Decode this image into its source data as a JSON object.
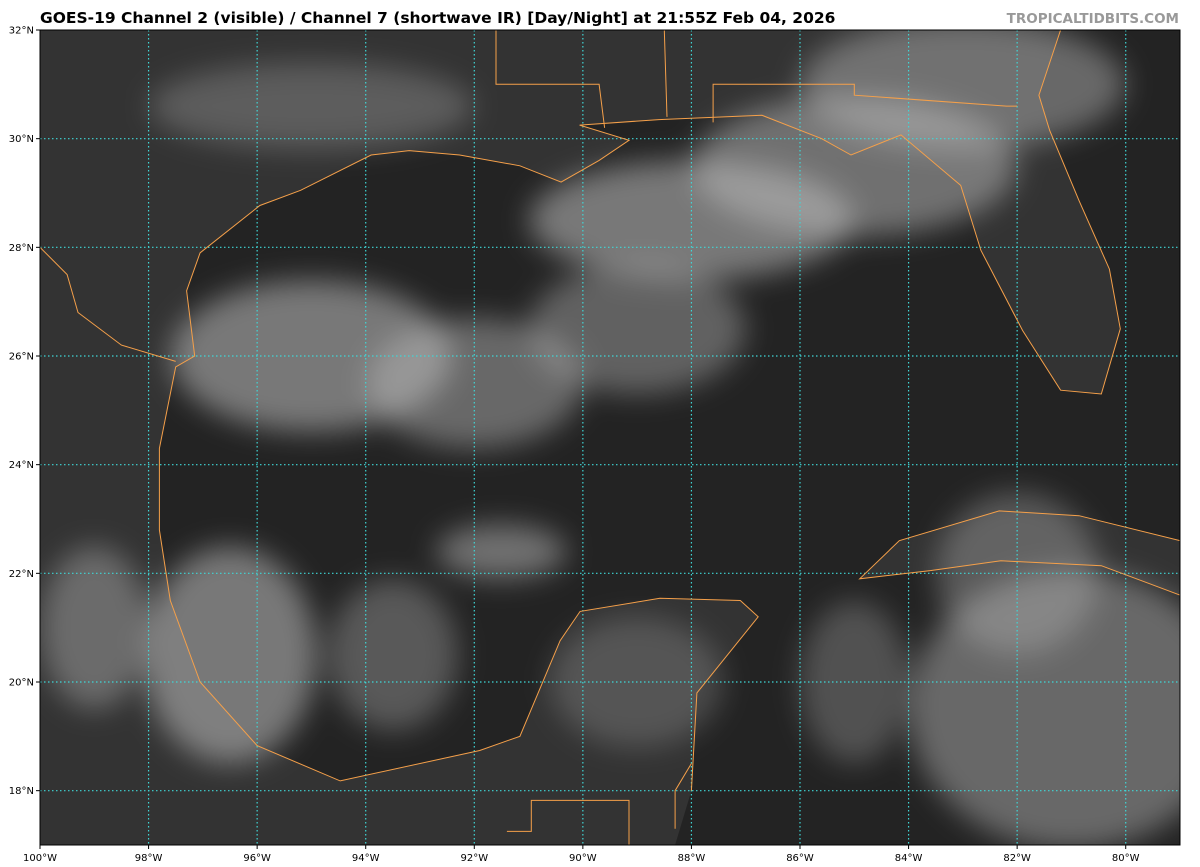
{
  "title": "GOES-19 Channel 2 (visible) / Channel 7 (shortwave IR) [Day/Night] at 21:55Z Feb 04, 2026",
  "watermark": "TROPICALTIDBITS.COM",
  "map": {
    "extent": {
      "lon": [
        -100,
        -79
      ],
      "lat": [
        17,
        32
      ]
    },
    "lon_ticks": [
      {
        "value": -100,
        "label": "100°W"
      },
      {
        "value": -98,
        "label": "98°W"
      },
      {
        "value": -96,
        "label": "96°W"
      },
      {
        "value": -94,
        "label": "94°W"
      },
      {
        "value": -92,
        "label": "92°W"
      },
      {
        "value": -90,
        "label": "90°W"
      },
      {
        "value": -88,
        "label": "88°W"
      },
      {
        "value": -86,
        "label": "86°W"
      },
      {
        "value": -84,
        "label": "84°W"
      },
      {
        "value": -82,
        "label": "82°W"
      },
      {
        "value": -80,
        "label": "80°W"
      }
    ],
    "lat_ticks": [
      {
        "value": 32,
        "label": "32°N"
      },
      {
        "value": 30,
        "label": "30°N"
      },
      {
        "value": 28,
        "label": "28°N"
      },
      {
        "value": 26,
        "label": "26°N"
      },
      {
        "value": 24,
        "label": "24°N"
      },
      {
        "value": 22,
        "label": "22°N"
      },
      {
        "value": 20,
        "label": "20°N"
      },
      {
        "value": 18,
        "label": "18°N"
      }
    ],
    "colors": {
      "background": "#232323",
      "coastline": "#f5a04a",
      "gridline": "#3fd6d6",
      "cloud": "#bdbdbd"
    }
  }
}
